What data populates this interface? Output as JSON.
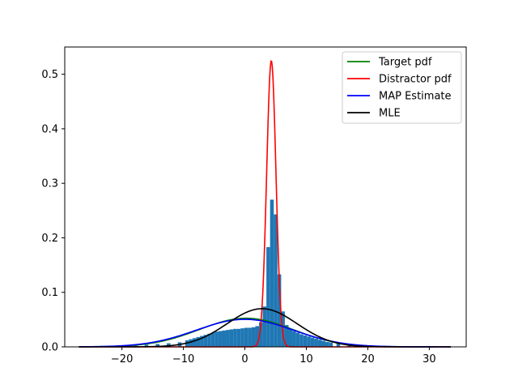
{
  "chart_data": {
    "type": "line",
    "title": "",
    "xlabel": "",
    "ylabel": "",
    "xlim": [
      -29.3,
      36.0
    ],
    "ylim": [
      0,
      0.55
    ],
    "xticks": [
      -20,
      -10,
      0,
      10,
      20,
      30
    ],
    "yticks": [
      0.0,
      0.1,
      0.2,
      0.3,
      0.4,
      0.5
    ],
    "xtick_labels": [
      "−20",
      "−10",
      "0",
      "10",
      "20",
      "30"
    ],
    "ytick_labels": [
      "0.0",
      "0.1",
      "0.2",
      "0.3",
      "0.4",
      "0.5"
    ],
    "grid": false,
    "legend_position": "top-right",
    "series": [
      {
        "name": "Target pdf",
        "kind": "normal",
        "mean": 0.2,
        "std": 7.6,
        "weight": 1.0,
        "color": "#008000"
      },
      {
        "name": "Distractor pdf",
        "kind": "normal",
        "mean": 4.3,
        "std": 0.76,
        "weight": 1.0,
        "color": "#ff0000"
      },
      {
        "name": "MAP Estimate",
        "kind": "normal",
        "mean": 0.0,
        "std": 7.9,
        "weight": 1.0,
        "color": "#0000ff"
      },
      {
        "name": "MLE",
        "kind": "normal",
        "mean": 2.8,
        "std": 5.7,
        "weight": 1.0,
        "color": "#000000"
      }
    ],
    "histogram": {
      "color": "#1f77b4",
      "bin_width": 0.6,
      "bars": [
        {
          "x": -26.8,
          "y": 0.0008
        },
        {
          "x": -25.0,
          "y": 0.0009
        },
        {
          "x": -23.2,
          "y": 0.0012
        },
        {
          "x": -21.4,
          "y": 0.0016
        },
        {
          "x": -19.6,
          "y": 0.0022
        },
        {
          "x": -17.8,
          "y": 0.003
        },
        {
          "x": -16.0,
          "y": 0.004
        },
        {
          "x": -14.2,
          "y": 0.0052
        },
        {
          "x": -12.4,
          "y": 0.0066
        },
        {
          "x": -10.6,
          "y": 0.0084
        },
        {
          "x": -9.4,
          "y": 0.012
        },
        {
          "x": -8.8,
          "y": 0.014
        },
        {
          "x": -8.2,
          "y": 0.016
        },
        {
          "x": -7.6,
          "y": 0.018
        },
        {
          "x": -7.0,
          "y": 0.02
        },
        {
          "x": -6.4,
          "y": 0.022
        },
        {
          "x": -5.8,
          "y": 0.024
        },
        {
          "x": -5.2,
          "y": 0.026
        },
        {
          "x": -4.6,
          "y": 0.028
        },
        {
          "x": -4.0,
          "y": 0.029
        },
        {
          "x": -3.4,
          "y": 0.03
        },
        {
          "x": -2.8,
          "y": 0.031
        },
        {
          "x": -2.2,
          "y": 0.032
        },
        {
          "x": -1.6,
          "y": 0.033
        },
        {
          "x": -1.0,
          "y": 0.033
        },
        {
          "x": -0.4,
          "y": 0.034
        },
        {
          "x": 0.2,
          "y": 0.035
        },
        {
          "x": 0.8,
          "y": 0.035
        },
        {
          "x": 1.4,
          "y": 0.036
        },
        {
          "x": 2.0,
          "y": 0.038
        },
        {
          "x": 2.6,
          "y": 0.045
        },
        {
          "x": 3.2,
          "y": 0.074
        },
        {
          "x": 3.8,
          "y": 0.183
        },
        {
          "x": 4.4,
          "y": 0.27
        },
        {
          "x": 5.0,
          "y": 0.243
        },
        {
          "x": 5.6,
          "y": 0.133
        },
        {
          "x": 6.2,
          "y": 0.065
        },
        {
          "x": 6.8,
          "y": 0.04
        },
        {
          "x": 7.4,
          "y": 0.033
        },
        {
          "x": 8.0,
          "y": 0.029
        },
        {
          "x": 8.6,
          "y": 0.026
        },
        {
          "x": 9.2,
          "y": 0.023
        },
        {
          "x": 9.8,
          "y": 0.021
        },
        {
          "x": 10.4,
          "y": 0.019
        },
        {
          "x": 11.0,
          "y": 0.017
        },
        {
          "x": 11.6,
          "y": 0.015
        },
        {
          "x": 12.2,
          "y": 0.013
        },
        {
          "x": 12.8,
          "y": 0.011
        },
        {
          "x": 13.4,
          "y": 0.009
        },
        {
          "x": 14.0,
          "y": 0.008
        },
        {
          "x": 15.2,
          "y": 0.006
        },
        {
          "x": 17.0,
          "y": 0.0045
        },
        {
          "x": 18.8,
          "y": 0.0033
        },
        {
          "x": 20.6,
          "y": 0.0024
        },
        {
          "x": 22.4,
          "y": 0.0017
        },
        {
          "x": 24.2,
          "y": 0.0012
        },
        {
          "x": 26.0,
          "y": 0.0009
        },
        {
          "x": 27.8,
          "y": 0.0007
        },
        {
          "x": 29.6,
          "y": 0.0006
        },
        {
          "x": 31.4,
          "y": 0.0005
        },
        {
          "x": 33.2,
          "y": 0.0004
        }
      ]
    }
  }
}
